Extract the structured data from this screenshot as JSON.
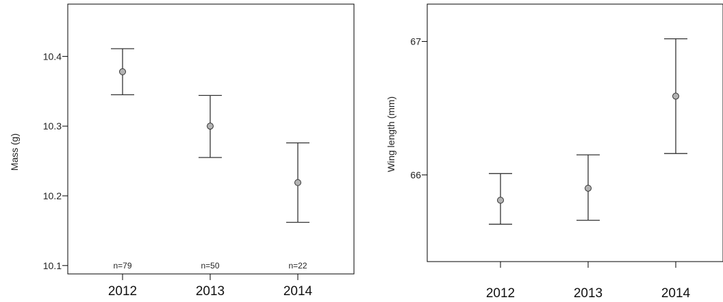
{
  "chart_data": [
    {
      "type": "scatter",
      "title": "",
      "xlabel": "",
      "ylabel": "Mass (g)",
      "categories": [
        "2012",
        "2013",
        "2014"
      ],
      "yticks": [
        "10.1",
        "10.2",
        "10.3",
        "10.4"
      ],
      "ylim": [
        10.088,
        10.475
      ],
      "grid": false,
      "series": [
        {
          "values": [
            10.378,
            10.3,
            10.219
          ],
          "lower": [
            10.345,
            10.255,
            10.162
          ],
          "upper": [
            10.411,
            10.344,
            10.276
          ]
        }
      ],
      "annotations": [
        "n=79",
        "n=50",
        "n=22"
      ],
      "annotation_y": 10.1
    },
    {
      "type": "scatter",
      "title": "",
      "xlabel": "",
      "ylabel": "Wing length (mm)",
      "categories": [
        "2012",
        "2013",
        "2014"
      ],
      "yticks": [
        "66",
        "67"
      ],
      "ylim": [
        65.35,
        67.28
      ],
      "grid": false,
      "series": [
        {
          "values": [
            65.81,
            65.9,
            66.59
          ],
          "lower": [
            65.63,
            65.66,
            66.16
          ],
          "upper": [
            66.01,
            66.15,
            67.02
          ]
        }
      ]
    }
  ],
  "colors": {
    "marker_fill": "#b3b3b3",
    "stroke": "#333333",
    "axis": "#000000"
  }
}
